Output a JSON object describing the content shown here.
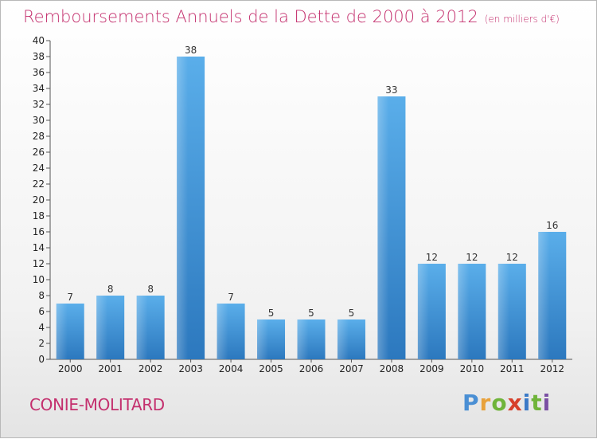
{
  "header": {
    "title": "Remboursements Annuels de la Dette de 2000 à 2012",
    "unit": "(en milliers d'€)"
  },
  "footer": {
    "commune": "CONIE-MOLITARD",
    "logo_letters": [
      "P",
      "r",
      "o",
      "x",
      "i",
      "t",
      "i"
    ]
  },
  "chart_data": {
    "type": "bar",
    "title": "Remboursements Annuels de la Dette de 2000 à 2012",
    "subtitle": "(en milliers d'€)",
    "xlabel": "",
    "ylabel": "",
    "categories": [
      "2000",
      "2001",
      "2002",
      "2003",
      "2004",
      "2005",
      "2006",
      "2007",
      "2008",
      "2009",
      "2010",
      "2011",
      "2012"
    ],
    "values": [
      7,
      8,
      8,
      38,
      7,
      5,
      5,
      5,
      33,
      12,
      12,
      12,
      16
    ],
    "ylim": [
      0,
      40
    ],
    "ytick_step": 2,
    "grid": false,
    "legend": "none",
    "bar_color": "#4a9fe0",
    "bar_color_dark": "#2d7ac0"
  }
}
